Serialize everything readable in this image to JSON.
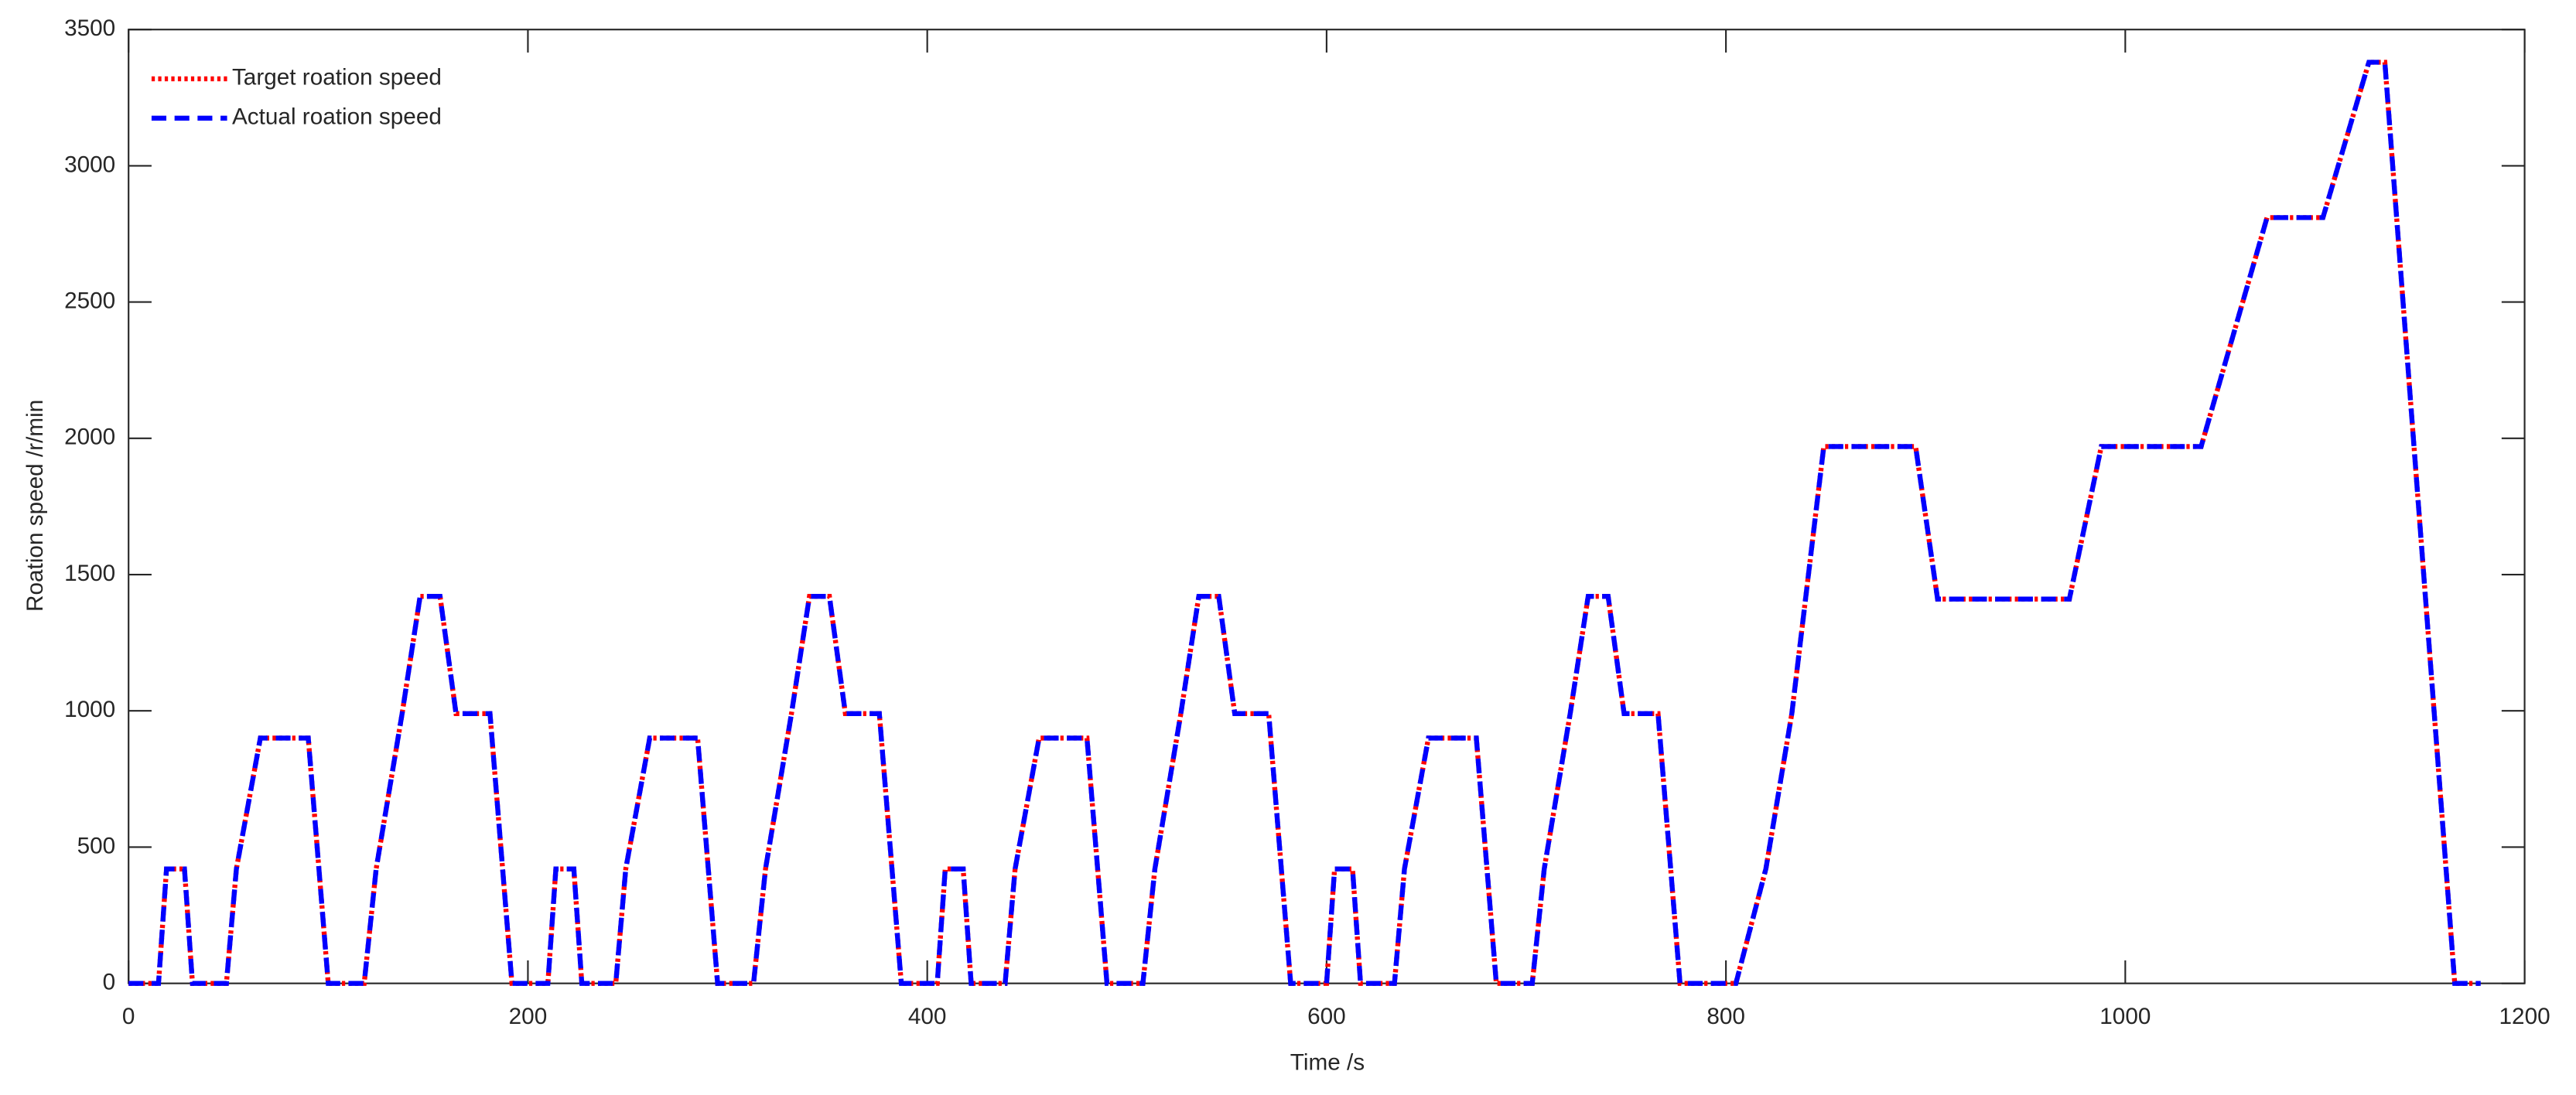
{
  "chart_data": {
    "type": "line",
    "xlabel": "Time /s",
    "ylabel": "Roation speed /r/min",
    "x": [
      0,
      15,
      19,
      28,
      32,
      49,
      54,
      66,
      90,
      100,
      118,
      124,
      137,
      146,
      156,
      164,
      181,
      192,
      195,
      210,
      214,
      223,
      227,
      244,
      249,
      261,
      285,
      295,
      313,
      319,
      332,
      341,
      351,
      359,
      376,
      387,
      390,
      405,
      409,
      418,
      422,
      439,
      444,
      456,
      480,
      490,
      508,
      514,
      527,
      536,
      546,
      554,
      571,
      582,
      585,
      600,
      604,
      613,
      617,
      634,
      639,
      651,
      675,
      685,
      703,
      709,
      722,
      731,
      741,
      749,
      766,
      777,
      805,
      820,
      833,
      849,
      895,
      906,
      972,
      988,
      1038,
      1071,
      1099,
      1122,
      1130,
      1165,
      1178
    ],
    "series": [
      {
        "name": "Target roation speed",
        "color": "#ff0000",
        "style": "dotted",
        "values": [
          0,
          0,
          420,
          420,
          0,
          0,
          420,
          900,
          900,
          0,
          0,
          420,
          990,
          1420,
          1420,
          990,
          990,
          0,
          0,
          0,
          420,
          420,
          0,
          0,
          420,
          900,
          900,
          0,
          0,
          420,
          990,
          1420,
          1420,
          990,
          990,
          0,
          0,
          0,
          420,
          420,
          0,
          0,
          420,
          900,
          900,
          0,
          0,
          420,
          990,
          1420,
          1420,
          990,
          990,
          0,
          0,
          0,
          420,
          420,
          0,
          0,
          420,
          900,
          900,
          0,
          0,
          420,
          990,
          1420,
          1420,
          990,
          990,
          0,
          0,
          420,
          990,
          1970,
          1970,
          1410,
          1410,
          1970,
          1970,
          2810,
          2810,
          3380,
          3380,
          0,
          0
        ]
      },
      {
        "name": "Actual roation speed",
        "color": "#0000ff",
        "style": "dashed",
        "values": [
          0,
          0,
          420,
          420,
          0,
          0,
          420,
          900,
          900,
          0,
          0,
          420,
          990,
          1420,
          1420,
          990,
          990,
          0,
          0,
          0,
          420,
          420,
          0,
          0,
          420,
          900,
          900,
          0,
          0,
          420,
          990,
          1420,
          1420,
          990,
          990,
          0,
          0,
          0,
          420,
          420,
          0,
          0,
          420,
          900,
          900,
          0,
          0,
          420,
          990,
          1420,
          1420,
          990,
          990,
          0,
          0,
          0,
          420,
          420,
          0,
          0,
          420,
          900,
          900,
          0,
          0,
          420,
          990,
          1420,
          1420,
          990,
          990,
          0,
          0,
          420,
          990,
          1970,
          1970,
          1410,
          1410,
          1970,
          1970,
          2810,
          2810,
          3380,
          3380,
          0,
          0
        ]
      }
    ],
    "xlim": [
      0,
      1200
    ],
    "xticks": [
      0,
      200,
      400,
      600,
      800,
      1000,
      1200
    ],
    "ylim": [
      0,
      3500
    ],
    "yticks": [
      0,
      500,
      1000,
      1500,
      2000,
      2500,
      3000,
      3500
    ],
    "grid": false,
    "legend": "upper left"
  }
}
